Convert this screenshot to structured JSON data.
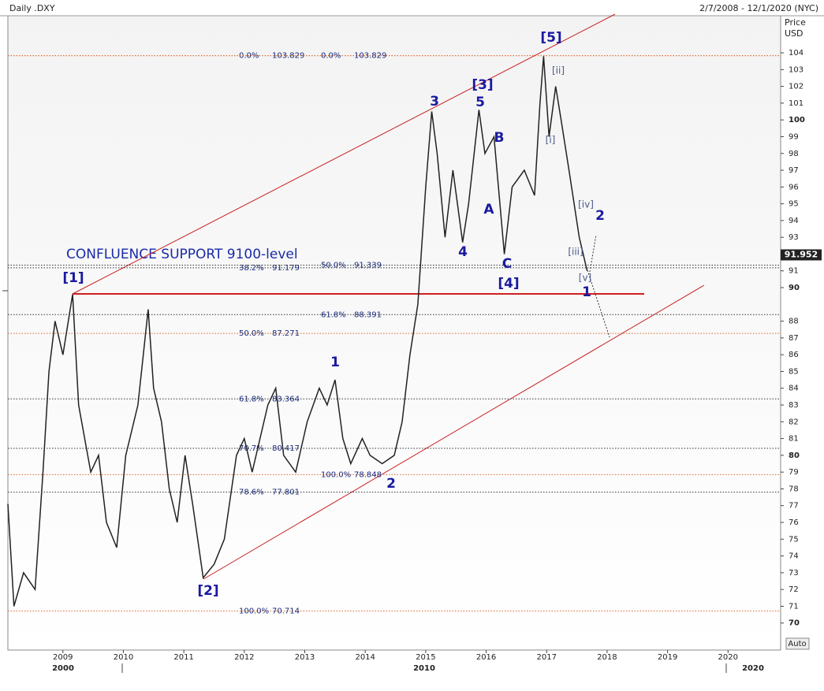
{
  "chart_data": {
    "type": "line",
    "title": "Daily .DXY",
    "date_range": "2/7/2008 - 12/1/2020 (NYC)",
    "axis_title": [
      "Price",
      "USD"
    ],
    "annotation": "CONFLUENCE SUPPORT 9100-level",
    "last_price": 91.952,
    "auto_button": "Auto",
    "decade_labels": [
      "2000",
      "2010",
      "2020"
    ],
    "series": [
      {
        "name": ".DXY",
        "color": "#222222",
        "x": [
          2008.09,
          2008.19,
          2008.35,
          2008.54,
          2008.67,
          2008.77,
          2008.87,
          2009.0,
          2009.16,
          2009.26,
          2009.46,
          2009.59,
          2009.72,
          2009.89,
          2010.04,
          2010.24,
          2010.41,
          2010.5,
          2010.63,
          2010.76,
          2010.89,
          2011.02,
          2011.15,
          2011.32,
          2011.5,
          2011.67,
          2011.87,
          2012.0,
          2012.13,
          2012.39,
          2012.52,
          2012.65,
          2012.85,
          2013.04,
          2013.24,
          2013.37,
          2013.5,
          2013.63,
          2013.76,
          2013.95,
          2014.08,
          2014.28,
          2014.48,
          2014.61,
          2014.74,
          2014.87,
          2015.0,
          2015.1,
          2015.19,
          2015.32,
          2015.45,
          2015.61,
          2015.71,
          2015.88,
          2015.98,
          2016.13,
          2016.3,
          2016.43,
          2016.63,
          2016.8,
          2016.89,
          2016.95,
          2017.04,
          2017.15,
          2017.24,
          2017.37,
          2017.54,
          2017.67
        ],
        "values": [
          77.1,
          71,
          73,
          72,
          79,
          85,
          88,
          86,
          89.6,
          83,
          79,
          80,
          76,
          74.5,
          80,
          83,
          88.7,
          84,
          82,
          78,
          76,
          80,
          77,
          72.7,
          73.5,
          75,
          80,
          81,
          79,
          83,
          84,
          80,
          79,
          82,
          84,
          83,
          84.5,
          81,
          79.5,
          81,
          80,
          79.5,
          80,
          82,
          86,
          89,
          96,
          100.5,
          98,
          93,
          97,
          92.7,
          95,
          100.6,
          98,
          99,
          92,
          96,
          97,
          95.5,
          101,
          103.8,
          99,
          102,
          100,
          97,
          93,
          91
        ]
      }
    ],
    "fib_left": [
      {
        "pct": "0.0%",
        "value": 103.829,
        "color": "#e0662a"
      },
      {
        "pct": "38.2%",
        "value": 91.179,
        "color": "#333333"
      },
      {
        "pct": "50.0%",
        "value": 87.271,
        "color": "#e0662a"
      },
      {
        "pct": "61.8%",
        "value": 83.364,
        "color": "#333333"
      },
      {
        "pct": "70.7%",
        "value": 80.417,
        "color": "#333333"
      },
      {
        "pct": "78.6%",
        "value": 77.801,
        "color": "#333333"
      },
      {
        "pct": "100.0%",
        "value": 70.714,
        "color": "#e0662a"
      }
    ],
    "fib_right": [
      {
        "pct": "0.0%",
        "value": 103.829,
        "color": "#e0662a"
      },
      {
        "pct": "50.0%",
        "value": 91.339,
        "color": "#333333"
      },
      {
        "pct": "61.8%",
        "value": 88.391,
        "color": "#333333"
      },
      {
        "pct": "100.0%",
        "value": 78.848,
        "color": "#e0662a"
      }
    ],
    "wave_labels": [
      "[1]",
      "[2]",
      "[3]",
      "[4]",
      "[5]",
      "1",
      "2",
      "3",
      "4",
      "5",
      "A",
      "B",
      "C",
      "[i]",
      "[ii]",
      "[iii]",
      "[iv]",
      "[v]",
      "1",
      "2"
    ],
    "xlim": [
      2008.09,
      2020.87
    ],
    "xticks": [
      2009,
      2010,
      2011,
      2012,
      2013,
      2014,
      2015,
      2016,
      2017,
      2018,
      2019,
      2020
    ],
    "ylim": [
      68.39,
      106.21
    ],
    "yticks": [
      70,
      71,
      72,
      73,
      74,
      75,
      76,
      77,
      78,
      79,
      80,
      81,
      82,
      83,
      84,
      85,
      86,
      87,
      88,
      90,
      91,
      93,
      94,
      95,
      96,
      97,
      98,
      99,
      100,
      101,
      102,
      103,
      104
    ]
  }
}
